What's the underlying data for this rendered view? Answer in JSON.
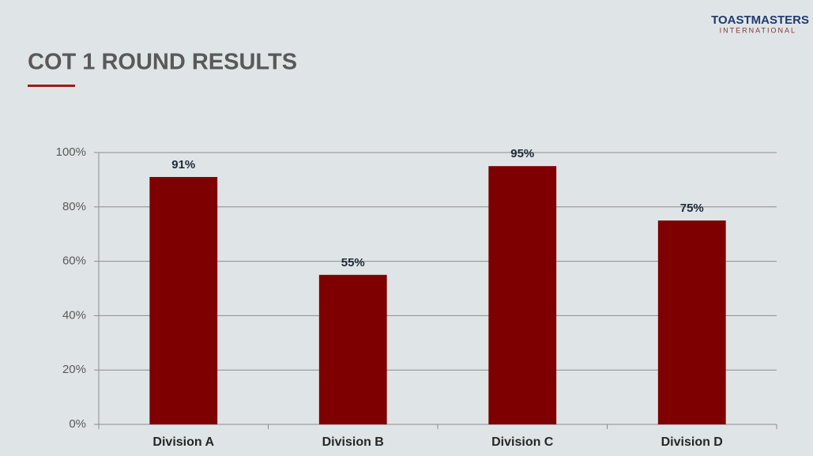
{
  "logo": {
    "name": "TOASTMASTERS",
    "subtitle": "INTERNATIONAL"
  },
  "chart_data": {
    "type": "bar",
    "title": "COT 1 ROUND RESULTS",
    "categories": [
      "Division A",
      "Division B",
      "Division C",
      "Division D"
    ],
    "values": [
      91,
      55,
      95,
      75
    ],
    "value_labels": [
      "91%",
      "55%",
      "95%",
      "75%"
    ],
    "color": "#7f0000",
    "ylim": [
      0,
      100
    ],
    "yticks": [
      {
        "value": 0,
        "label": "0%"
      },
      {
        "value": 20,
        "label": "20%"
      },
      {
        "value": 40,
        "label": "40%"
      },
      {
        "value": 60,
        "label": "60%"
      },
      {
        "value": 80,
        "label": "80%"
      },
      {
        "value": 100,
        "label": "100%"
      }
    ],
    "grid": true
  }
}
